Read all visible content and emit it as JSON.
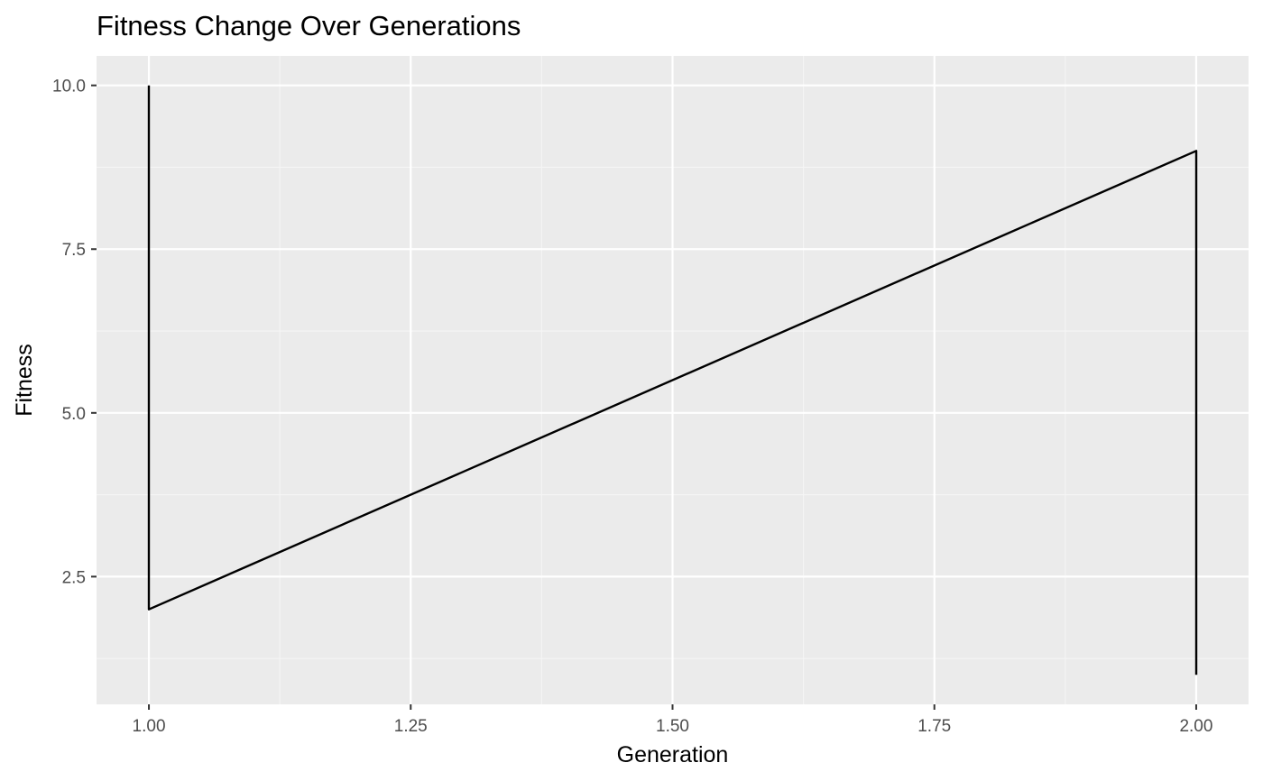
{
  "chart_data": {
    "type": "line",
    "title": "Fitness Change Over Generations",
    "xlabel": "Generation",
    "ylabel": "Fitness",
    "xlim": [
      0.95,
      2.05
    ],
    "ylim": [
      0.55,
      10.45
    ],
    "x_ticks": [
      1.0,
      1.25,
      1.5,
      1.75,
      2.0
    ],
    "x_tick_labels": [
      "1.00",
      "1.25",
      "1.50",
      "1.75",
      "2.00"
    ],
    "y_ticks": [
      2.5,
      5.0,
      7.5,
      10.0
    ],
    "y_tick_labels": [
      "2.5",
      "5.0",
      "7.5",
      "10.0"
    ],
    "grid": true,
    "series": [
      {
        "x": [
          1,
          1,
          2,
          2
        ],
        "y": [
          10,
          2,
          9,
          1
        ]
      }
    ],
    "colors": {
      "panel_background": "#ebebeb",
      "grid_major": "#ffffff",
      "grid_minor": "#f5f5f5",
      "line": "#000000",
      "tick": "#333333"
    }
  }
}
